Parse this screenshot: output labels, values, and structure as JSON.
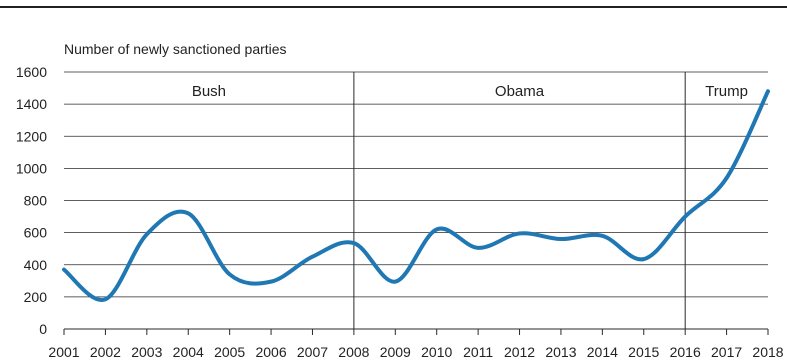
{
  "chart_data": {
    "type": "line",
    "title": "",
    "ylabel": "Number of newly sanctioned parties",
    "xlabel": "",
    "x": [
      2001,
      2002,
      2003,
      2004,
      2005,
      2006,
      2007,
      2008,
      2009,
      2010,
      2011,
      2012,
      2013,
      2014,
      2015,
      2016,
      2017,
      2018
    ],
    "series": [
      {
        "values": [
          370,
          185,
          590,
          720,
          340,
          295,
          450,
          535,
          295,
          620,
          505,
          595,
          560,
          580,
          435,
          700,
          940,
          1480
        ]
      }
    ],
    "ylim": [
      0,
      1600
    ],
    "yticks": [
      0,
      200,
      400,
      600,
      800,
      1000,
      1200,
      1400,
      1600
    ],
    "grid": true,
    "line_color": "#1f77b4",
    "period_dividers": [
      2008,
      2016
    ],
    "periods": [
      {
        "label": "Bush",
        "start": 2001,
        "end": 2008
      },
      {
        "label": "Obama",
        "start": 2008,
        "end": 2016
      },
      {
        "label": "Trump",
        "start": 2016,
        "end": 2018
      }
    ]
  }
}
